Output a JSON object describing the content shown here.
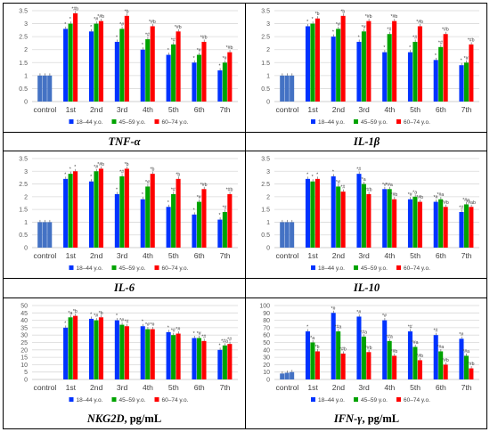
{
  "colors": {
    "control": "#4472c4",
    "18-44": "#0033ff",
    "45-59": "#00a300",
    "60-74": "#ff0000"
  },
  "chart_data": [
    {
      "type": "bar",
      "caption": "TNF-α",
      "categories": [
        "control",
        "1st",
        "2nd",
        "3rd",
        "4th",
        "5th",
        "6th",
        "7th"
      ],
      "ylim": [
        0,
        3.5
      ],
      "yticks": [
        "0",
        "0.5",
        "1",
        "1.5",
        "2",
        "2.5",
        "3",
        "3.5"
      ],
      "series": [
        {
          "name": "18–44 y.o.",
          "values": [
            1.0,
            2.8,
            2.7,
            2.3,
            2.0,
            1.8,
            1.5,
            1.2
          ]
        },
        {
          "name": "45–59 y.o.",
          "values": [
            1.0,
            3.0,
            3.0,
            2.8,
            2.4,
            2.2,
            1.8,
            1.5
          ]
        },
        {
          "name": "60–74 y.o.",
          "values": [
            1.0,
            3.4,
            3.1,
            3.3,
            2.9,
            2.7,
            2.3,
            1.9
          ]
        }
      ],
      "markers": [
        [
          "",
          "*",
          "*",
          "*",
          "*",
          "*",
          "*",
          "*"
        ],
        [
          "",
          "*",
          "*#",
          "*#",
          "*#",
          "*#",
          "*#",
          "*#"
        ],
        [
          "",
          "*#b",
          "*#b",
          "*b",
          "*#b",
          "*#b",
          "*#b",
          "*#b"
        ]
      ]
    },
    {
      "type": "bar",
      "caption": "IL-1β",
      "categories": [
        "control",
        "1st",
        "2nd",
        "3rd",
        "4th",
        "5th",
        "6th",
        "7th"
      ],
      "ylim": [
        0,
        3.5
      ],
      "yticks": [
        "0",
        "0.5",
        "1",
        "1.5",
        "2",
        "2.5",
        "3",
        "3.5"
      ],
      "series": [
        {
          "name": "18–44 y.o.",
          "values": [
            1.0,
            2.9,
            2.5,
            2.3,
            1.9,
            1.9,
            1.6,
            1.4
          ]
        },
        {
          "name": "45–59 y.o.",
          "values": [
            1.0,
            3.0,
            2.8,
            2.7,
            2.6,
            2.3,
            2.1,
            1.5
          ]
        },
        {
          "name": "60–74 y.o.",
          "values": [
            1.0,
            3.2,
            3.3,
            3.1,
            3.1,
            2.9,
            2.6,
            2.2
          ]
        }
      ],
      "markers": [
        [
          "",
          "*",
          "*",
          "*",
          "*",
          "*",
          "*",
          "*"
        ],
        [
          "",
          "*",
          "*#",
          "*#",
          "*#",
          "*#",
          "*#",
          "*#"
        ],
        [
          "",
          "*b",
          "*b",
          "*#b",
          "*#b",
          "*#b",
          "*#b",
          "*#b"
        ]
      ]
    },
    {
      "type": "bar",
      "caption": "IL-6",
      "categories": [
        "control",
        "1st",
        "2nd",
        "3rd",
        "4th",
        "5th",
        "6th",
        "7th"
      ],
      "ylim": [
        0,
        3.5
      ],
      "yticks": [
        "0",
        "0.5",
        "1",
        "1.5",
        "2",
        "2.5",
        "3",
        "3.5"
      ],
      "series": [
        {
          "name": "18–44 y.o.",
          "values": [
            1.0,
            2.7,
            2.6,
            2.1,
            1.9,
            1.6,
            1.3,
            1.1
          ]
        },
        {
          "name": "45–59 y.o.",
          "values": [
            1.0,
            2.9,
            3.0,
            2.8,
            2.4,
            2.1,
            1.8,
            1.4
          ]
        },
        {
          "name": "60–74 y.o.",
          "values": [
            1.0,
            3.0,
            3.1,
            3.1,
            2.9,
            2.7,
            2.3,
            2.1
          ]
        }
      ],
      "markers": [
        [
          "",
          "*",
          "*",
          "*",
          "*",
          "*",
          "*",
          "*"
        ],
        [
          "",
          "*",
          "*#",
          "*#",
          "*#",
          "*#",
          "*#",
          "*#"
        ],
        [
          "",
          "*",
          "*#b",
          "*b",
          "*b",
          "*b",
          "*#b",
          "*#b"
        ]
      ]
    },
    {
      "type": "bar",
      "caption": "IL-10",
      "categories": [
        "control",
        "1st",
        "2nd",
        "3rd",
        "4th",
        "5th",
        "6th",
        "7th"
      ],
      "ylim": [
        0,
        3.5
      ],
      "yticks": [
        "0",
        "0.5",
        "1",
        "1.5",
        "2",
        "2.5",
        "3",
        "3.5"
      ],
      "series": [
        {
          "name": "18–44 y.o.",
          "values": [
            1.0,
            2.7,
            2.8,
            2.9,
            2.3,
            1.9,
            1.8,
            1.4
          ]
        },
        {
          "name": "45–59 y.o.",
          "values": [
            1.0,
            2.6,
            2.4,
            2.5,
            2.3,
            2.0,
            1.9,
            1.7
          ]
        },
        {
          "name": "60–74 y.o.",
          "values": [
            1.0,
            2.7,
            2.2,
            2.1,
            1.9,
            1.8,
            1.6,
            1.6
          ]
        }
      ],
      "markers": [
        [
          "",
          "*",
          "*",
          "*#",
          "*#",
          "*#",
          "*#",
          "*#"
        ],
        [
          "",
          "*",
          "*#",
          "*a",
          "*#a",
          "*a",
          "*#a",
          "*#a"
        ],
        [
          "",
          "*",
          "*#",
          "*#b",
          "*#b",
          "*#b",
          "*#b",
          "*#ab"
        ]
      ]
    },
    {
      "type": "bar",
      "caption": "NKG2D",
      "caption_unit": ", pg/mL",
      "categories": [
        "control",
        "1st",
        "2nd",
        "3rd",
        "4th",
        "5th",
        "6th",
        "7th"
      ],
      "ylim": [
        0,
        50
      ],
      "yticks": [
        "0",
        "5",
        "10",
        "15",
        "20",
        "25",
        "30",
        "35",
        "40",
        "45",
        "50"
      ],
      "series": [
        {
          "name": "18–44 y.o.",
          "values": [
            0,
            35,
            41,
            40,
            36,
            32,
            28,
            20
          ]
        },
        {
          "name": "45–59 y.o.",
          "values": [
            0,
            42,
            40,
            37,
            34,
            30,
            28,
            23
          ]
        },
        {
          "name": "60–74 y.o.",
          "values": [
            0,
            43,
            42,
            36,
            34,
            31,
            26,
            24
          ]
        }
      ],
      "markers": [
        [
          "",
          "*",
          "*",
          "*",
          "*",
          "*",
          "*",
          "*"
        ],
        [
          "",
          "*a",
          "*#",
          "*#",
          "*#",
          "*#",
          "*#",
          "*#a"
        ],
        [
          "",
          "*b",
          "*b",
          "*#",
          "*#",
          "*#",
          "*#",
          "*#"
        ]
      ]
    },
    {
      "type": "bar",
      "caption": "IFN-γ",
      "caption_unit": ", pg/mL",
      "categories": [
        "control",
        "1st",
        "2nd",
        "3rd",
        "4th",
        "5th",
        "6th",
        "7th"
      ],
      "ylim": [
        0,
        100
      ],
      "yticks": [
        "0",
        "10",
        "20",
        "30",
        "40",
        "50",
        "60",
        "70",
        "80",
        "90",
        "100"
      ],
      "series": [
        {
          "name": "18–44 y.o.",
          "values": [
            8,
            65,
            90,
            85,
            80,
            65,
            60,
            55
          ]
        },
        {
          "name": "45–59 y.o.",
          "values": [
            9,
            50,
            65,
            58,
            52,
            44,
            38,
            32
          ]
        },
        {
          "name": "60–74 y.o.",
          "values": [
            10,
            38,
            35,
            37,
            32,
            26,
            20,
            15
          ]
        }
      ],
      "markers": [
        [
          "",
          "*",
          "*#",
          "*#",
          "*#",
          "*#",
          "*#",
          "*#"
        ],
        [
          "",
          "*a",
          "*#a",
          "*#a",
          "*#a",
          "*#a",
          "*#a",
          "*#a"
        ],
        [
          "",
          "*b",
          "*#b",
          "*#b",
          "*#b",
          "*#b",
          "*#b",
          "*#b"
        ]
      ]
    }
  ]
}
